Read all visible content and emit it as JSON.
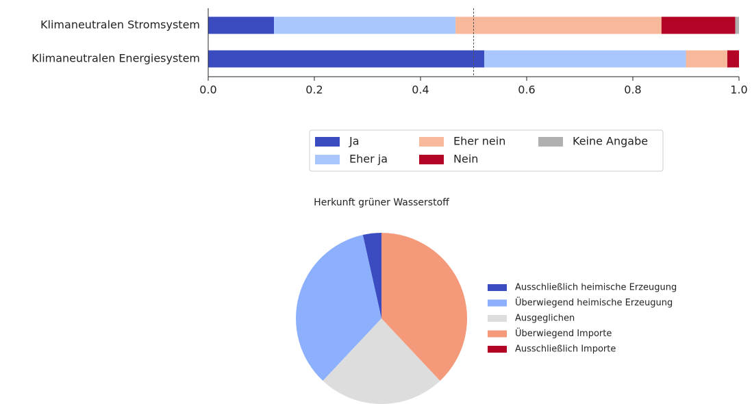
{
  "chart_data": [
    {
      "type": "stacked_barh",
      "categories": [
        "Klimaneutralen Stromsystem",
        "Klimaneutralen Energiesystem"
      ],
      "series": [
        {
          "name": "Ja",
          "color": "#3b4cc0",
          "values": [
            0.124,
            0.52
          ]
        },
        {
          "name": "Eher ja",
          "color": "#aac7fd",
          "values": [
            0.342,
            0.38
          ]
        },
        {
          "name": "Eher nein",
          "color": "#f7b89c",
          "values": [
            0.388,
            0.078
          ]
        },
        {
          "name": "Nein",
          "color": "#b40426",
          "values": [
            0.139,
            0.022
          ]
        },
        {
          "name": "Keine Angabe",
          "color": "#b0b0b0",
          "values": [
            0.007,
            0
          ]
        }
      ],
      "xlim": [
        0,
        1.0
      ],
      "xticks": [
        {
          "value": 0,
          "label": "0.0"
        },
        0.2,
        0.4,
        0.6,
        0.8,
        {
          "value": 1.0,
          "label": "1.0"
        }
      ],
      "reference_line": 0.5,
      "legend": "below"
    },
    {
      "type": "pie",
      "title": "Herkunft grüner Wasserstoff",
      "categories": [
        "Ausschließlich heimische Erzeugung",
        "Überwiegend heimische Erzeugung",
        "Ausgeglichen",
        "Überwiegend Importe",
        "Ausschließlich Importe"
      ],
      "values": [
        3.5,
        34.5,
        24,
        38,
        0
      ],
      "colors": [
        "#3b4cc0",
        "#8db0fe",
        "#dddddd",
        "#f49a7b",
        "#b40426"
      ],
      "legend": "right"
    }
  ]
}
